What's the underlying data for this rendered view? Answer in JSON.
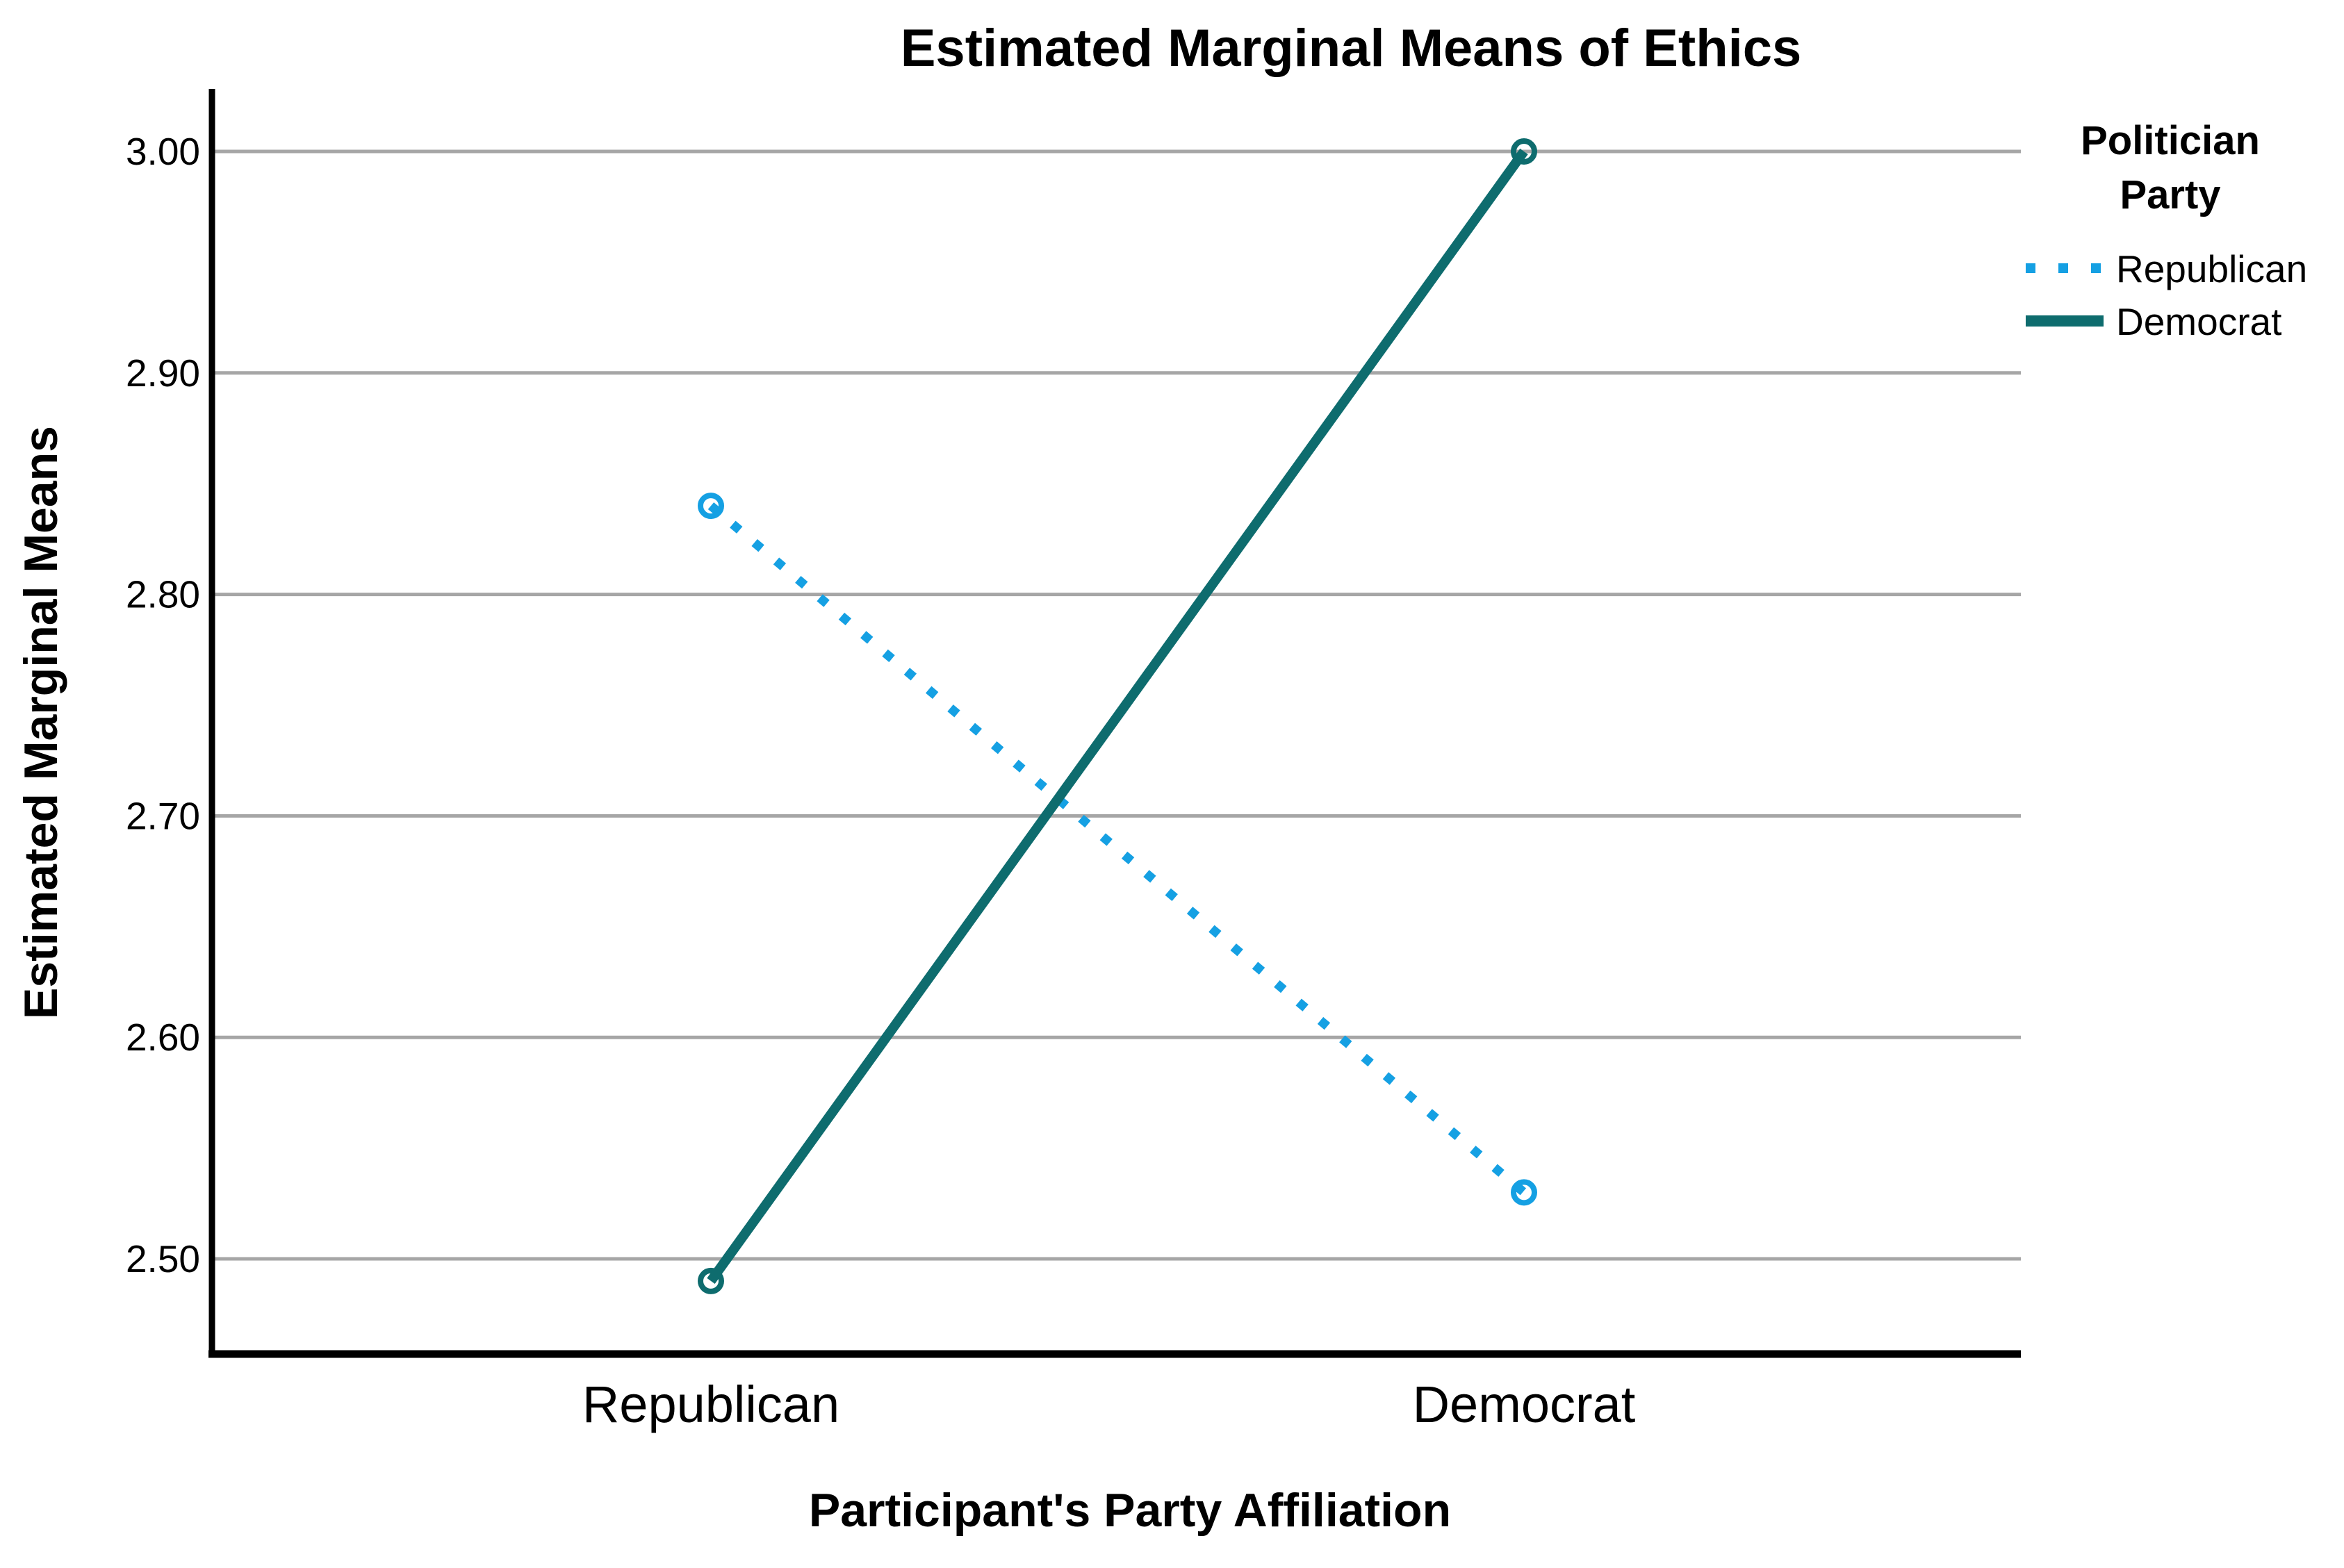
{
  "chart_data": {
    "type": "line",
    "title": "Estimated Marginal Means of Ethics",
    "xlabel": "Participant's Party Affiliation",
    "ylabel": "Estimated Marginal Means",
    "categories": [
      "Republican",
      "Democrat"
    ],
    "series": [
      {
        "name": "Republican",
        "line_style": "dotted",
        "color": "#15a0e3",
        "values": [
          2.84,
          2.53
        ]
      },
      {
        "name": "Democrat",
        "line_style": "solid",
        "color": "#0e6c6e",
        "values": [
          2.49,
          3.0
        ]
      }
    ],
    "ytick_labels": [
      "3.00",
      "2.90",
      "2.80",
      "2.70",
      "2.60",
      "2.50"
    ],
    "yticks": [
      3.0,
      2.9,
      2.8,
      2.7,
      2.6,
      2.5
    ],
    "ylim": [
      2.455,
      3.03
    ],
    "grid": true,
    "marker": "open-circle",
    "gridline_color": "#a6a6a6",
    "axis_color": "#000000",
    "legend": {
      "position": "right",
      "title_lines": [
        "Politician",
        "Party"
      ],
      "entries": [
        "Republican",
        "Democrat"
      ]
    }
  }
}
